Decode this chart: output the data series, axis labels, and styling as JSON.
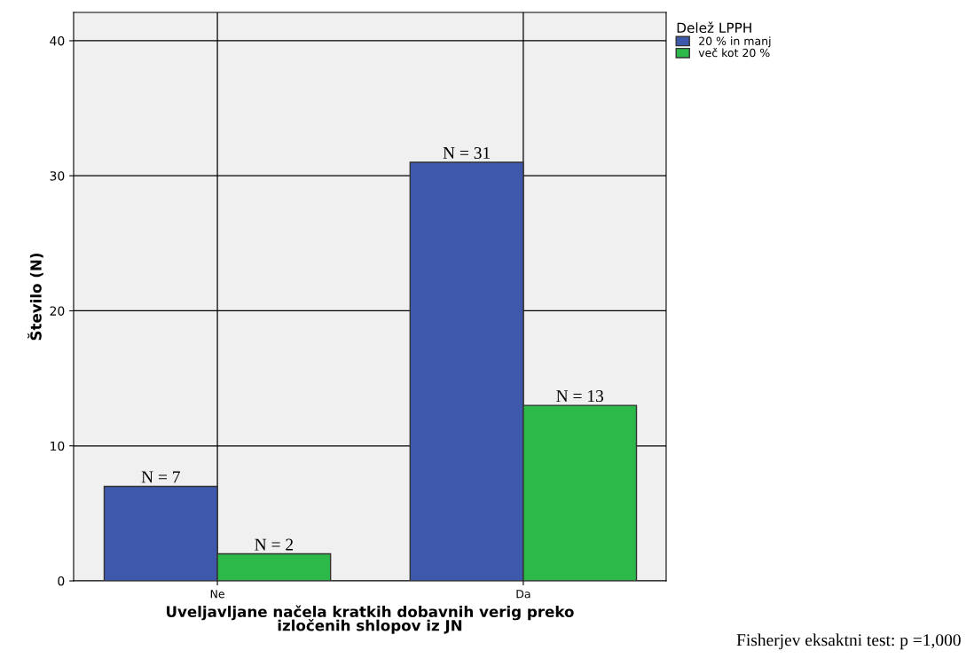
{
  "chart_data": {
    "type": "bar",
    "xlabel": "Uveljavljane načela kratkih dobavnih verig preko\nizločenih shlopov iz JN",
    "ylabel": "Število (N)",
    "legend_title": "Delež LPPH",
    "categories": [
      "Ne",
      "Da"
    ],
    "series": [
      {
        "name": "20 % in manj",
        "color": "#3e58ac",
        "values": [
          7,
          31
        ],
        "value_labels": [
          "N = 7",
          "N = 31"
        ]
      },
      {
        "name": "več kot 20 %",
        "color": "#2db84a",
        "values": [
          2,
          13
        ],
        "value_labels": [
          "N = 2",
          "N = 13"
        ]
      }
    ],
    "ylim": [
      0,
      42.1
    ],
    "yticks": [
      0,
      10,
      20,
      30,
      40
    ],
    "grid": true,
    "legend": "right",
    "annotations": [
      "Fisherjev eksaktni test: p =1,000"
    ]
  }
}
